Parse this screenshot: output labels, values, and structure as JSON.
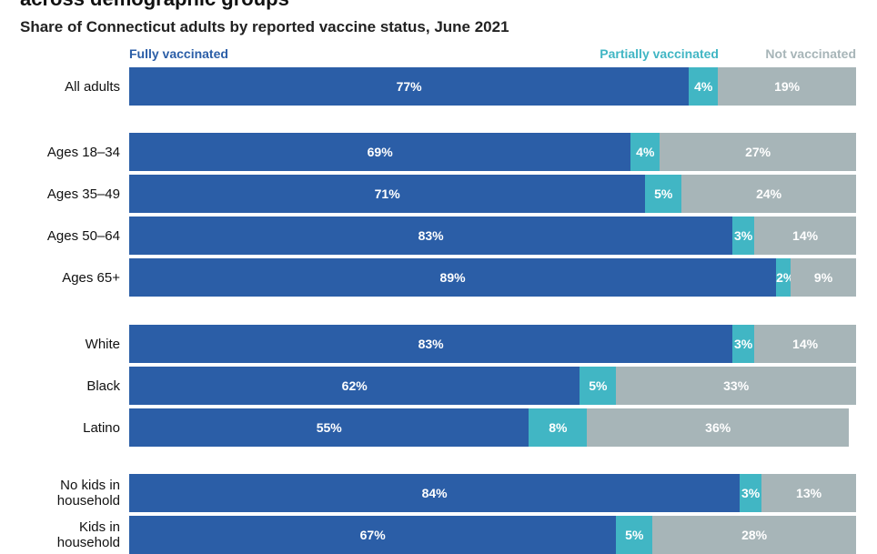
{
  "title": "across demographic groups",
  "subtitle": "Share of Connecticut adults by reported vaccine status, June 2021",
  "colors": {
    "fully": "#2b5ea7",
    "partially": "#41b6c4",
    "not": "#a7b5b8"
  },
  "chart_data": {
    "type": "bar",
    "orientation": "horizontal",
    "stacked": true,
    "percent_stacked": true,
    "series": [
      {
        "name": "Fully vaccinated",
        "values": [
          77,
          69,
          71,
          83,
          89,
          83,
          62,
          55,
          84,
          67
        ]
      },
      {
        "name": "Partially vaccinated",
        "values": [
          4,
          4,
          5,
          3,
          2,
          3,
          5,
          8,
          3,
          5
        ]
      },
      {
        "name": "Not vaccinated",
        "values": [
          19,
          27,
          24,
          14,
          9,
          14,
          33,
          36,
          13,
          28
        ]
      }
    ],
    "categories": [
      "All adults",
      "Ages 18–34",
      "Ages 35–49",
      "Ages 50–64",
      "Ages 65+",
      "White",
      "Black",
      "Latino",
      "No kids in\nhousehold",
      "Kids in\nhousehold"
    ],
    "value_labels": [
      [
        "77%",
        "4%",
        "19%"
      ],
      [
        "69%",
        "4%",
        "27%"
      ],
      [
        "71%",
        "5%",
        "24%"
      ],
      [
        "83%",
        "3%",
        "14%"
      ],
      [
        "89%",
        "2%",
        "9%"
      ],
      [
        "83%",
        "3%",
        "14%"
      ],
      [
        "62%",
        "5%",
        "33%"
      ],
      [
        "55%",
        "8%",
        "36%"
      ],
      [
        "84%",
        "3%",
        "13%"
      ],
      [
        "67%",
        "5%",
        "28%"
      ]
    ],
    "xlim": [
      0,
      100
    ],
    "legend_position": "top"
  }
}
